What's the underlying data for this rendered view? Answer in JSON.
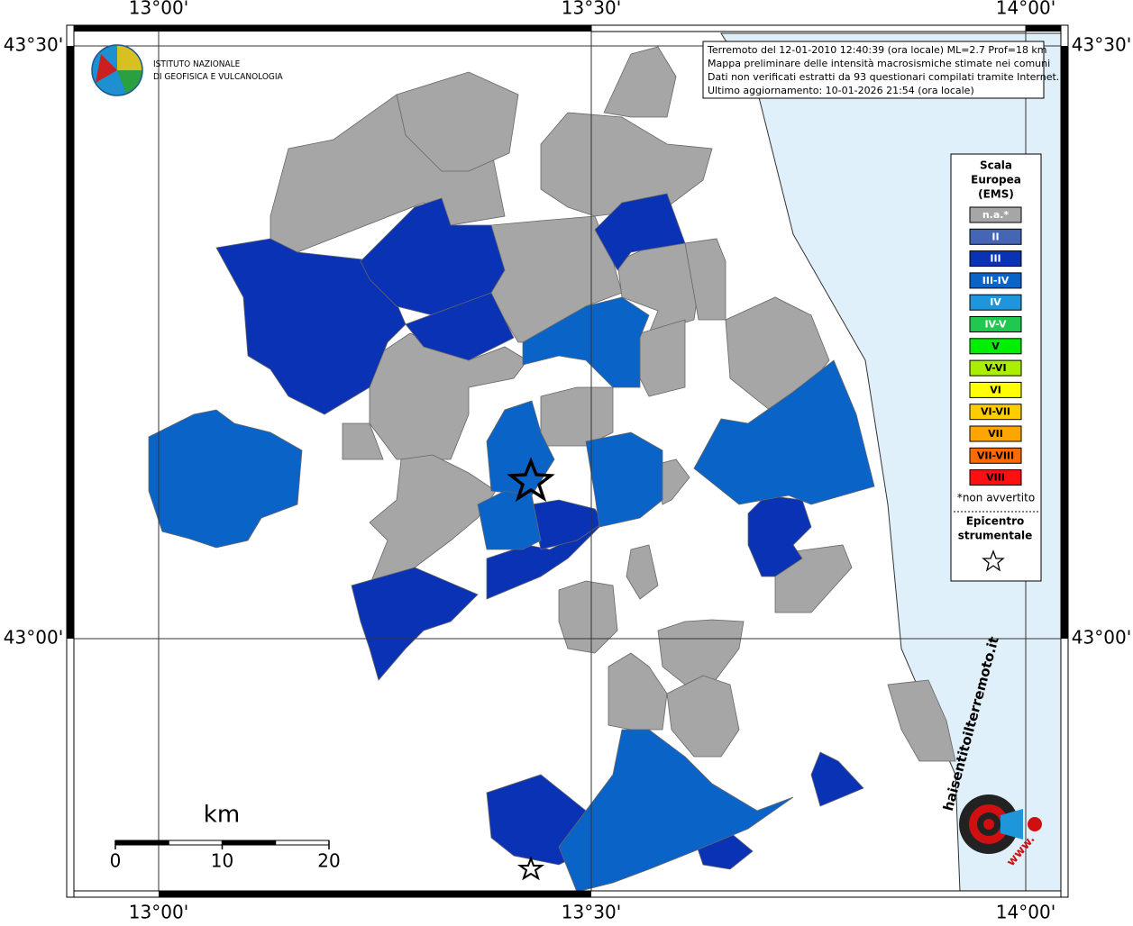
{
  "map": {
    "lon_labels": [
      "13°00'",
      "13°30'",
      "14°00'"
    ],
    "lat_labels": [
      "43°30'",
      "43°00'"
    ],
    "info": [
      "Terremoto del 12-01-2010 12:40:39 (ora locale) ML=2.7 Prof=18 km",
      "Mappa preliminare delle intensità macrosismiche stimate nei comuni",
      "Dati non verificati estratti da 93 questionari compilati tramite Internet.",
      "Ultimo aggiornamento: 10-01-2026 21:54 (ora locale)"
    ],
    "institute": [
      "ISTITUTO NAZIONALE",
      "DI GEOFISICA E VULCANOLOGIA"
    ],
    "legend": {
      "title": [
        "Scala",
        "Europea",
        "(EMS)"
      ],
      "items": [
        {
          "label": "n.a.*",
          "color": "#a6a6a6"
        },
        {
          "label": "II",
          "color": "#4466b4"
        },
        {
          "label": "III",
          "color": "#0a32b4"
        },
        {
          "label": "III-IV",
          "color": "#0a64c8"
        },
        {
          "label": "IV",
          "color": "#1e96dc"
        },
        {
          "label": "IV-V",
          "color": "#20c850"
        },
        {
          "label": "V",
          "color": "#00ee00"
        },
        {
          "label": "V-VI",
          "color": "#aaee00"
        },
        {
          "label": "VI",
          "color": "#ffff00"
        },
        {
          "label": "VI-VII",
          "color": "#ffcc00"
        },
        {
          "label": "VII",
          "color": "#ffa500"
        },
        {
          "label": "VII-VIII",
          "color": "#ff6a00"
        },
        {
          "label": "VIII",
          "color": "#ff1010"
        }
      ],
      "note": "*non avvertito",
      "epicenter": [
        "Epicentro",
        "strumentale"
      ]
    },
    "scale": {
      "unit": "km",
      "ticks": [
        0,
        10,
        20
      ]
    },
    "site": [
      "haisentitoilterremoto.it",
      "www."
    ]
  }
}
